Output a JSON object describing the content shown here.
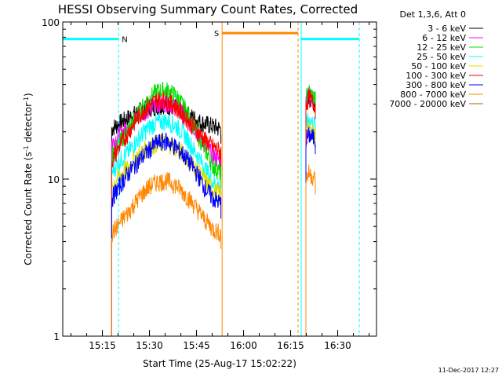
{
  "chart_data": {
    "type": "line",
    "title": "HESSI Observing Summary Count Rates, Corrected",
    "xlabel": "Start Time (25-Aug-17 15:02:22)",
    "ylabel_prefix": "Corrected Count Rate (s",
    "ylabel_sup": "-1",
    "ylabel_mid": " detector",
    "ylabel_sup2": "-1",
    "ylabel_suffix": ")",
    "x_tick_labels": [
      "15:15",
      "15:30",
      "15:45",
      "16:00",
      "16:15",
      "16:30"
    ],
    "x_tick_minutes": [
      12.633,
      27.633,
      42.633,
      57.633,
      72.633,
      87.633
    ],
    "xlim_minutes": [
      0,
      100
    ],
    "y_scale": "log",
    "ylim": [
      1,
      100
    ],
    "y_tick_labels": [
      "1",
      "10",
      "100"
    ],
    "y_tick_values": [
      1,
      10,
      100
    ],
    "legend_header": "Det 1,3,6, Att 0",
    "legend_position": "right, outside plot",
    "series": [
      {
        "name": "3 - 6 keV",
        "color": "#000000",
        "segments": [
          {
            "x": [
              15.6,
              17,
              20,
              23,
              26,
              29,
              32,
              35,
              38,
              41,
              44,
              47,
              50,
              50.4
            ],
            "y": [
              21,
              22,
              24,
              26,
              28,
              29,
              30,
              29,
              27,
              25,
              23,
              22,
              21,
              21
            ]
          },
          {
            "x": [
              77.5,
              78.5,
              79.5,
              80.5
            ],
            "y": [
              31,
              34,
              32,
              30
            ]
          }
        ]
      },
      {
        "name": "6 - 12 keV",
        "color": "#ff00ff",
        "segments": [
          {
            "x": [
              15.6,
              18,
              21,
              24,
              27,
              30,
              33,
              36,
              39,
              42,
              45,
              48,
              50.4
            ],
            "y": [
              17,
              19,
              22,
              25,
              28,
              30,
              31,
              29,
              25,
              21,
              17,
              14,
              13
            ]
          },
          {
            "x": [
              77.5,
              78.5,
              79.5,
              80.5
            ],
            "y": [
              32,
              35,
              33,
              31
            ]
          }
        ]
      },
      {
        "name": "12 - 25 keV",
        "color": "#00dd00",
        "segments": [
          {
            "x": [
              15.6,
              18,
              21,
              24,
              27,
              30,
              33,
              36,
              39,
              42,
              45,
              48,
              50.4
            ],
            "y": [
              14,
              17,
              21,
              26,
              32,
              36,
              37,
              34,
              28,
              21,
              16,
              12,
              11
            ]
          },
          {
            "x": [
              77.5,
              78.5,
              79.5,
              80.5
            ],
            "y": [
              33,
              36,
              34,
              32
            ]
          }
        ]
      },
      {
        "name": "25 - 50 keV",
        "color": "#00ffff",
        "segments": [
          {
            "x": [
              15.6,
              18,
              21,
              24,
              27,
              30,
              33,
              36,
              39,
              42,
              45,
              48,
              50.4
            ],
            "y": [
              11,
              13,
              15,
              18,
              21,
              23,
              23.5,
              22,
              19,
              15,
              12,
              9.5,
              9
            ]
          },
          {
            "x": [
              77.5,
              78.5,
              79.5,
              80.5
            ],
            "y": [
              22,
              24,
              23,
              22
            ]
          }
        ]
      },
      {
        "name": "50 - 100 keV",
        "color": "#dddd00",
        "segments": [
          {
            "x": [
              15.6,
              18,
              21,
              24,
              27,
              30,
              33,
              36,
              39,
              42,
              45,
              48,
              50.4
            ],
            "y": [
              9,
              10.5,
              12,
              14,
              16,
              17,
              17,
              16,
              14,
              12,
              10,
              8.5,
              8
            ]
          },
          {
            "x": [
              77.5,
              78.5,
              79.5,
              80.5
            ],
            "y": [
              19,
              21,
              20,
              19
            ]
          }
        ]
      },
      {
        "name": "100 - 300 keV",
        "color": "#ff0000",
        "segments": [
          {
            "x": [
              15.6,
              18,
              21,
              24,
              27,
              30,
              33,
              36,
              39,
              42,
              45,
              48,
              50.4
            ],
            "y": [
              13,
              16,
              20,
              25,
              29,
              32,
              32,
              29,
              25,
              21,
              18,
              16,
              15
            ]
          },
          {
            "x": [
              77.5,
              78.5,
              79.5,
              80.5
            ],
            "y": [
              30,
              33,
              31,
              30
            ]
          }
        ]
      },
      {
        "name": "300 - 800 keV",
        "color": "#0000ff",
        "segments": [
          {
            "x": [
              15.6,
              18,
              21,
              24,
              27,
              30,
              33,
              36,
              39,
              42,
              45,
              48,
              50.4
            ],
            "y": [
              7.5,
              9,
              11,
              13,
              15,
              17,
              17.5,
              16,
              14,
              11.5,
              9,
              7.5,
              7
            ]
          },
          {
            "x": [
              77.5,
              78.5,
              79.5,
              80.5
            ],
            "y": [
              18,
              19,
              18.5,
              18
            ]
          }
        ]
      },
      {
        "name": "800 - 7000 keV",
        "color": "#ff8800",
        "segments": [
          {
            "x": [
              15.6,
              18,
              21,
              24,
              27,
              30,
              33,
              36,
              39,
              42,
              45,
              48,
              50.4
            ],
            "y": [
              4.5,
              5.2,
              6.2,
              7.5,
              8.8,
              9.6,
              9.8,
              9.2,
              8,
              6.8,
              5.6,
              4.8,
              4.5
            ]
          },
          {
            "x": [
              77.5,
              78.5,
              79.5,
              80.5
            ],
            "y": [
              10,
              11,
              10.5,
              10
            ]
          }
        ]
      },
      {
        "name": "7000 - 20000 keV",
        "color": "#aa6600",
        "segments": []
      }
    ],
    "flag_bars": [
      {
        "label": "",
        "color": "#00ffff",
        "x0": 0,
        "x1": 17.8,
        "y": 78
      },
      {
        "label": "N",
        "color": "#00ffff",
        "x0": 17.8,
        "x1": 17.8,
        "y": 78
      },
      {
        "label": "S",
        "color": "#ff8800",
        "x0": 50.8,
        "x1": 75.0,
        "y": 85
      },
      {
        "label": "",
        "color": "#00ffff",
        "x0": 76.0,
        "x1": 94.5,
        "y": 78
      }
    ],
    "vertical_markers": [
      {
        "x": 17.8,
        "color": "#00ffff",
        "style": "dashed"
      },
      {
        "x": 50.8,
        "color": "#ff8800",
        "style": "solid"
      },
      {
        "x": 75.0,
        "color": "#ff8800",
        "style": "dashed"
      },
      {
        "x": 76.0,
        "color": "#00ffff",
        "style": "solid"
      },
      {
        "x": 94.5,
        "color": "#00ffff",
        "style": "dashed"
      }
    ],
    "grid": false,
    "timestamp": "11-Dec-2017 12:27"
  }
}
